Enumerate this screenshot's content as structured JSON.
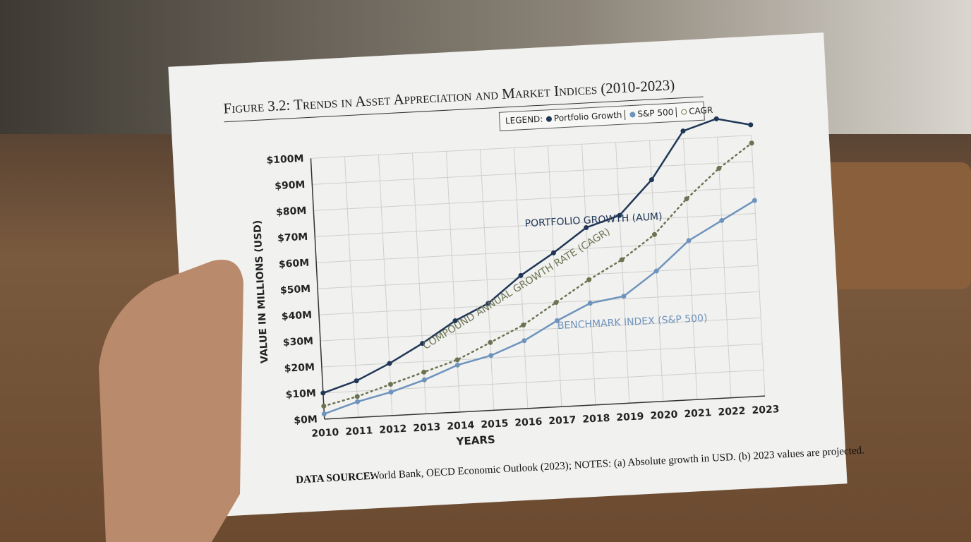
{
  "chart_data": {
    "type": "line",
    "title": "Figure 3.2: Trends in Asset Appreciation and Market Indices (2010-2023)",
    "legend_label": "LEGEND:",
    "x_label": "YEARS",
    "y_label": "VALUE IN MILLIONS (USD)",
    "x": [
      2010,
      2011,
      2012,
      2013,
      2014,
      2015,
      2016,
      2017,
      2018,
      2019,
      2020,
      2021,
      2022,
      2023
    ],
    "xlim": [
      2010,
      2023
    ],
    "xticks": [
      2010,
      2011,
      2012,
      2013,
      2014,
      2015,
      2016,
      2017,
      2018,
      2019,
      2020,
      2021,
      2022,
      2023
    ],
    "ylim": [
      0,
      100
    ],
    "yticks": [
      {
        "value": 0,
        "label": "$0M"
      },
      {
        "value": 10,
        "label": "$10M"
      },
      {
        "value": 20,
        "label": "$20M"
      },
      {
        "value": 30,
        "label": "$30M"
      },
      {
        "value": 40,
        "label": "$40M"
      },
      {
        "value": 50,
        "label": "$50M"
      },
      {
        "value": 60,
        "label": "$60M"
      },
      {
        "value": 70,
        "label": "$70M"
      },
      {
        "value": 80,
        "label": "$80M"
      },
      {
        "value": 90,
        "label": "$90M"
      },
      {
        "value": 100,
        "label": "$100M"
      }
    ],
    "grid": true,
    "legend_position": "top-right",
    "series": [
      {
        "name": "Portfolio Growth",
        "color": "#1f3657",
        "dash": false,
        "values": [
          10,
          14,
          20,
          27,
          35,
          41,
          51,
          59,
          68,
          72,
          85,
          103,
          107,
          104
        ]
      },
      {
        "name": "S&P 500",
        "color": "#6e93bd",
        "dash": false,
        "values": [
          2,
          6,
          9,
          13,
          18,
          21,
          26,
          33,
          39,
          41,
          50,
          61,
          68,
          75
        ]
      },
      {
        "name": "CAGR",
        "color": "#6b7352",
        "dash": true,
        "values": [
          5,
          8,
          12,
          16,
          20,
          26,
          32,
          40,
          48,
          55,
          64,
          77,
          88,
          97
        ]
      }
    ],
    "annotations": [
      {
        "text": "PORTFOLIO GROWTH (AUM)",
        "series": 0
      },
      {
        "text": "COMPOUND ANNUAL GROWTH RATE (CAGR)",
        "series": 2
      },
      {
        "text": "BENCHMARK INDEX (S&P 500)",
        "series": 1
      }
    ],
    "source_label": "DATA SOURCE:",
    "source_text": "World Bank, OECD Economic Outlook (2023); NOTES: (a) Absolute growth in USD. (b) 2023 values are projected."
  }
}
